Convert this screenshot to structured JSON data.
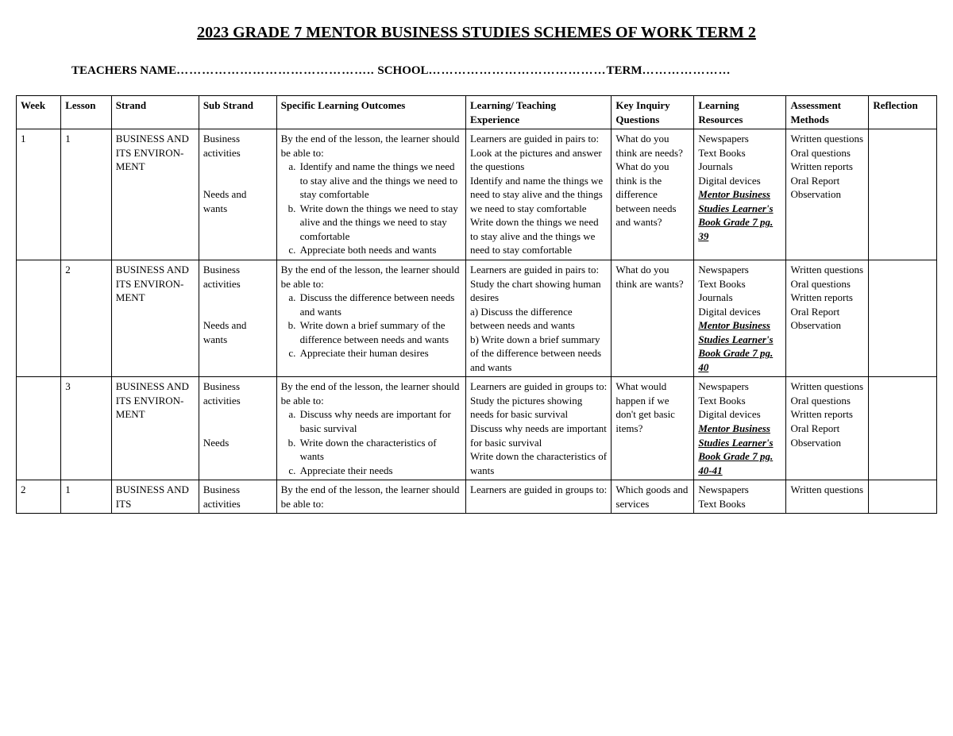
{
  "title": "2023 GRADE 7 MENTOR BUSINESS STUDIES SCHEMES OF WORK TERM 2",
  "subheader": {
    "teachers_label": "TEACHERS NAME",
    "teachers_dots": "………………………………………..",
    "school_label": "SCHOOL",
    "school_dots": "……………………………………",
    "term_label": "TERM",
    "term_dots": "…………………"
  },
  "columns": [
    "Week",
    "Lesson",
    "Strand",
    "Sub Strand",
    "Specific Learning Outcomes",
    "Learning/ Teaching Experience",
    "Key Inquiry Questions",
    "Learning Resources",
    "Assessment Methods",
    "Reflection"
  ],
  "rows": [
    {
      "week": "1",
      "lesson": "1",
      "strand": "BUSINESS AND ITS ENVIRON-MENT",
      "sub_strand_lines": [
        "Business activities",
        "",
        "",
        "Needs and wants"
      ],
      "slo_intro": "By the end of the lesson, the learner should be able to:",
      "slo_items": [
        "Identify and name the things we need to stay alive and the things we need to stay comfortable",
        "Write down the things we need to stay alive and the things we need to stay comfortable",
        "Appreciate both needs and wants"
      ],
      "lte": "Learners are guided in pairs to:\nLook at the pictures and answer the questions\nIdentify and name the things we need to stay alive and the things we need to stay comfortable\nWrite down the things we need to stay alive and the things we need to stay comfortable",
      "kiq": "What do you think are needs?\nWhat do you think is the difference between needs and wants?",
      "res_plain": [
        "Newspapers",
        "Text Books",
        "Journals",
        "Digital devices"
      ],
      "res_book": "Mentor Business Studies Learner's Book Grade 7 pg. 39",
      "assessment": [
        "Written questions",
        "Oral questions",
        "Written reports",
        "Oral Report",
        "Observation"
      ],
      "reflection": ""
    },
    {
      "week": "",
      "lesson": "2",
      "strand": "BUSINESS AND ITS ENVIRON-MENT",
      "sub_strand_lines": [
        "Business activities",
        "",
        "",
        "Needs and wants"
      ],
      "slo_intro": "By the end of the lesson, the learner should be able to:",
      "slo_items": [
        "Discuss the difference between needs and wants",
        "Write down a brief summary of the difference between needs and wants",
        "Appreciate their human desires"
      ],
      "lte": "Learners are guided in pairs to:\nStudy the chart showing human desires\na)   Discuss the difference between needs and wants\nb)   Write down a brief summary of the difference between needs and wants",
      "kiq": "What do you think are wants?",
      "res_plain": [
        "Newspapers",
        "Text Books",
        "Journals",
        "Digital devices"
      ],
      "res_book": "Mentor Business Studies Learner's Book Grade 7 pg. 40",
      "assessment": [
        "Written questions",
        "Oral questions",
        "Written reports",
        "Oral Report",
        "Observation"
      ],
      "reflection": ""
    },
    {
      "week": "",
      "lesson": "3",
      "strand": "BUSINESS AND ITS ENVIRON-MENT",
      "sub_strand_lines": [
        "Business activities",
        "",
        "",
        "Needs"
      ],
      "slo_intro": "By the end of the lesson, the learner should be able to:",
      "slo_items": [
        "Discuss why needs are important for basic survival",
        "Write down the characteristics of wants",
        "Appreciate their needs"
      ],
      "lte": "Learners are guided in groups to:\nStudy the pictures showing needs for basic survival\nDiscuss why needs are important for basic survival\nWrite down the characteristics of wants",
      "kiq": "What would happen if we don't get basic items?",
      "res_plain": [
        "Newspapers",
        "Text Books",
        "Digital devices"
      ],
      "res_book": "Mentor Business Studies Learner's Book Grade 7 pg. 40-41",
      "assessment": [
        "Written questions",
        "Oral questions",
        "Written reports",
        "Oral Report",
        "Observation"
      ],
      "reflection": ""
    },
    {
      "week": "2",
      "lesson": "1",
      "strand": "BUSINESS AND ITS",
      "sub_strand_lines": [
        "Business activities"
      ],
      "slo_intro": "By the end of the lesson, the learner should be able to:",
      "slo_items": [],
      "lte": "Learners are guided in groups to:",
      "kiq": "Which goods and services",
      "res_plain": [
        "Newspapers",
        "Text Books"
      ],
      "res_book": "",
      "assessment": [
        "Written questions"
      ],
      "reflection": ""
    }
  ],
  "style": {
    "font_family": "Times New Roman",
    "title_fontsize": 20,
    "body_fontsize": 13,
    "border_color": "#000000",
    "background_color": "#ffffff",
    "text_color": "#000000"
  }
}
